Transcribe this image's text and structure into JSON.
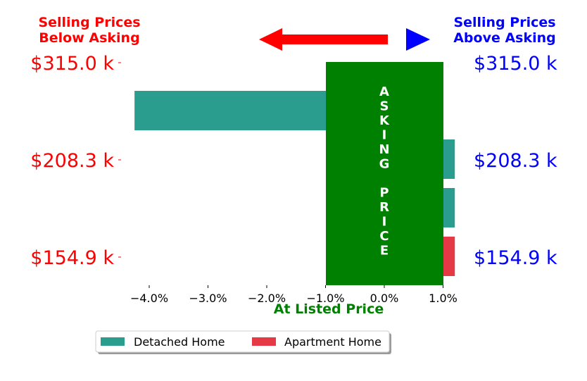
{
  "chart_data": {
    "type": "bar",
    "orientation": "horizontal",
    "xlabel": "At Listed Price",
    "xlim": [
      -4.5,
      1.2
    ],
    "x_ticks": [
      -4.0,
      -3.0,
      -2.0,
      -1.0,
      0.0,
      1.0
    ],
    "x_tick_labels": [
      "−4.0%",
      "−3.0%",
      "−2.0%",
      "−1.0%",
      "0.0%",
      "1.0%"
    ],
    "y_tick_labels": [
      "$315.0 k",
      "$208.3 k",
      "$154.9 k"
    ],
    "left_header": [
      "Selling Prices",
      "Below Asking"
    ],
    "right_header": [
      "Selling Prices",
      "Above Asking"
    ],
    "center_band_text": "ASKING PRICE",
    "bars": [
      {
        "series": "Detached Home",
        "value": -4.25
      },
      {
        "series": "Detached Home",
        "value": 1.2
      },
      {
        "series": "Detached Home",
        "value": 1.2
      },
      {
        "series": "Apartment Home",
        "value": 1.2
      }
    ],
    "series": [
      {
        "name": "Detached Home",
        "color": "#2a9d8f"
      },
      {
        "name": "Apartment Home",
        "color": "#e63946"
      }
    ],
    "legend_position": "bottom-center",
    "colors": {
      "below": "#ff0000",
      "above": "#0000ff",
      "band": "#008000",
      "xlabel": "#008000"
    }
  }
}
